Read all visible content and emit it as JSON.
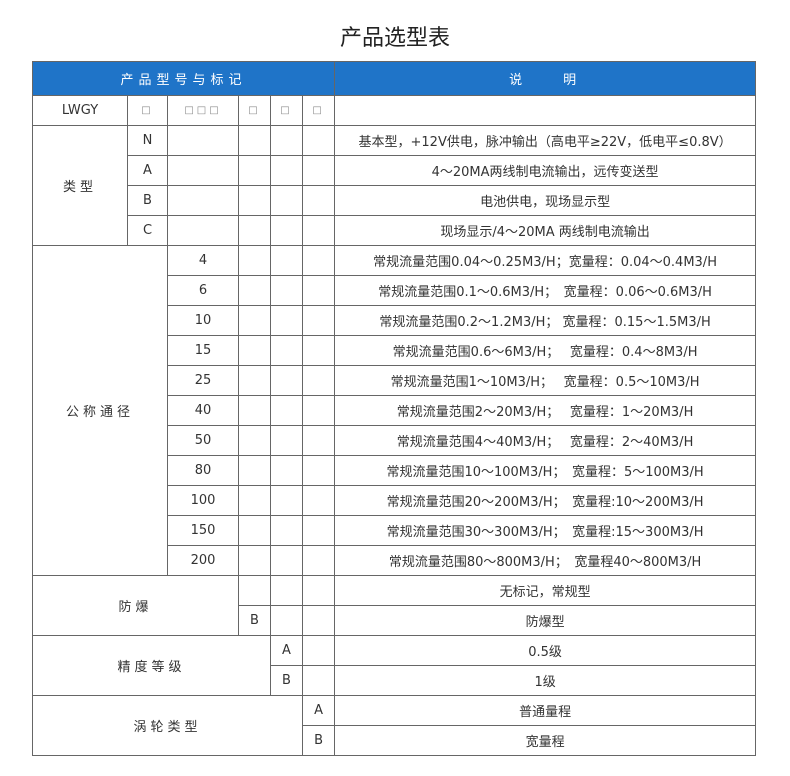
{
  "title": "产品选型表",
  "header": {
    "model_label": "产品型号与标记",
    "desc_label": "说　　明"
  },
  "base_row": {
    "model": "LWGY",
    "boxes": [
      "□",
      "□□□",
      "□",
      "□",
      "□"
    ]
  },
  "type": {
    "label": "类型",
    "rows": [
      {
        "code": "N",
        "desc": "基本型，+12V供电，脉冲输出（高电平≥22V，低电平≤0.8V）"
      },
      {
        "code": "A",
        "desc": "4～20MA两线制电流输出，远传变送型"
      },
      {
        "code": "B",
        "desc": "电池供电，现场显示型"
      },
      {
        "code": "C",
        "desc": "现场显示/4～20MA 两线制电流输出"
      }
    ]
  },
  "diameter": {
    "label": "公称通径",
    "rows": [
      {
        "code": "4",
        "desc": "常规流量范围0.04～0.25M3/H；宽量程：0.04～0.4M3/H"
      },
      {
        "code": "6",
        "desc": "常规流量范围0.1～0.6M3/H；　宽量程：0.06～0.6M3/H"
      },
      {
        "code": "10",
        "desc": "常规流量范围0.2～1.2M3/H；  宽量程：0.15～1.5M3/H"
      },
      {
        "code": "15",
        "desc": "常规流量范围0.6～6M3/H；　 宽量程：0.4～8M3/H"
      },
      {
        "code": "25",
        "desc": "常规流量范围1～10M3/H；　 宽量程：0.5～10M3/H"
      },
      {
        "code": "40",
        "desc": "常规流量范围2～20M3/H；　 宽量程：1～20M3/H"
      },
      {
        "code": "50",
        "desc": "常规流量范围4～40M3/H；　 宽量程：2～40M3/H"
      },
      {
        "code": "80",
        "desc": "常规流量范围10～100M3/H；　宽量程：5～100M3/H"
      },
      {
        "code": "100",
        "desc": "常规流量范围20～200M3/H；　宽量程:10～200M3/H"
      },
      {
        "code": "150",
        "desc": "常规流量范围30～300M3/H；　宽量程:15～300M3/H"
      },
      {
        "code": "200",
        "desc": "常规流量范围80～800M3/H；　宽量程40～800M3/H"
      }
    ]
  },
  "explosion": {
    "label": "防爆",
    "rows": [
      {
        "code": "",
        "desc": "无标记，常规型"
      },
      {
        "code": "B",
        "desc": "防爆型"
      }
    ]
  },
  "accuracy": {
    "label": "精度等级",
    "rows": [
      {
        "code": "A",
        "desc": "0.5级"
      },
      {
        "code": "B",
        "desc": "1级"
      }
    ]
  },
  "turbine": {
    "label": "涡轮类型",
    "rows": [
      {
        "code": "A",
        "desc": "普通量程"
      },
      {
        "code": "B",
        "desc": "宽量程"
      }
    ]
  },
  "colors": {
    "header_bg": "#1f74c8",
    "border": "#666666"
  }
}
